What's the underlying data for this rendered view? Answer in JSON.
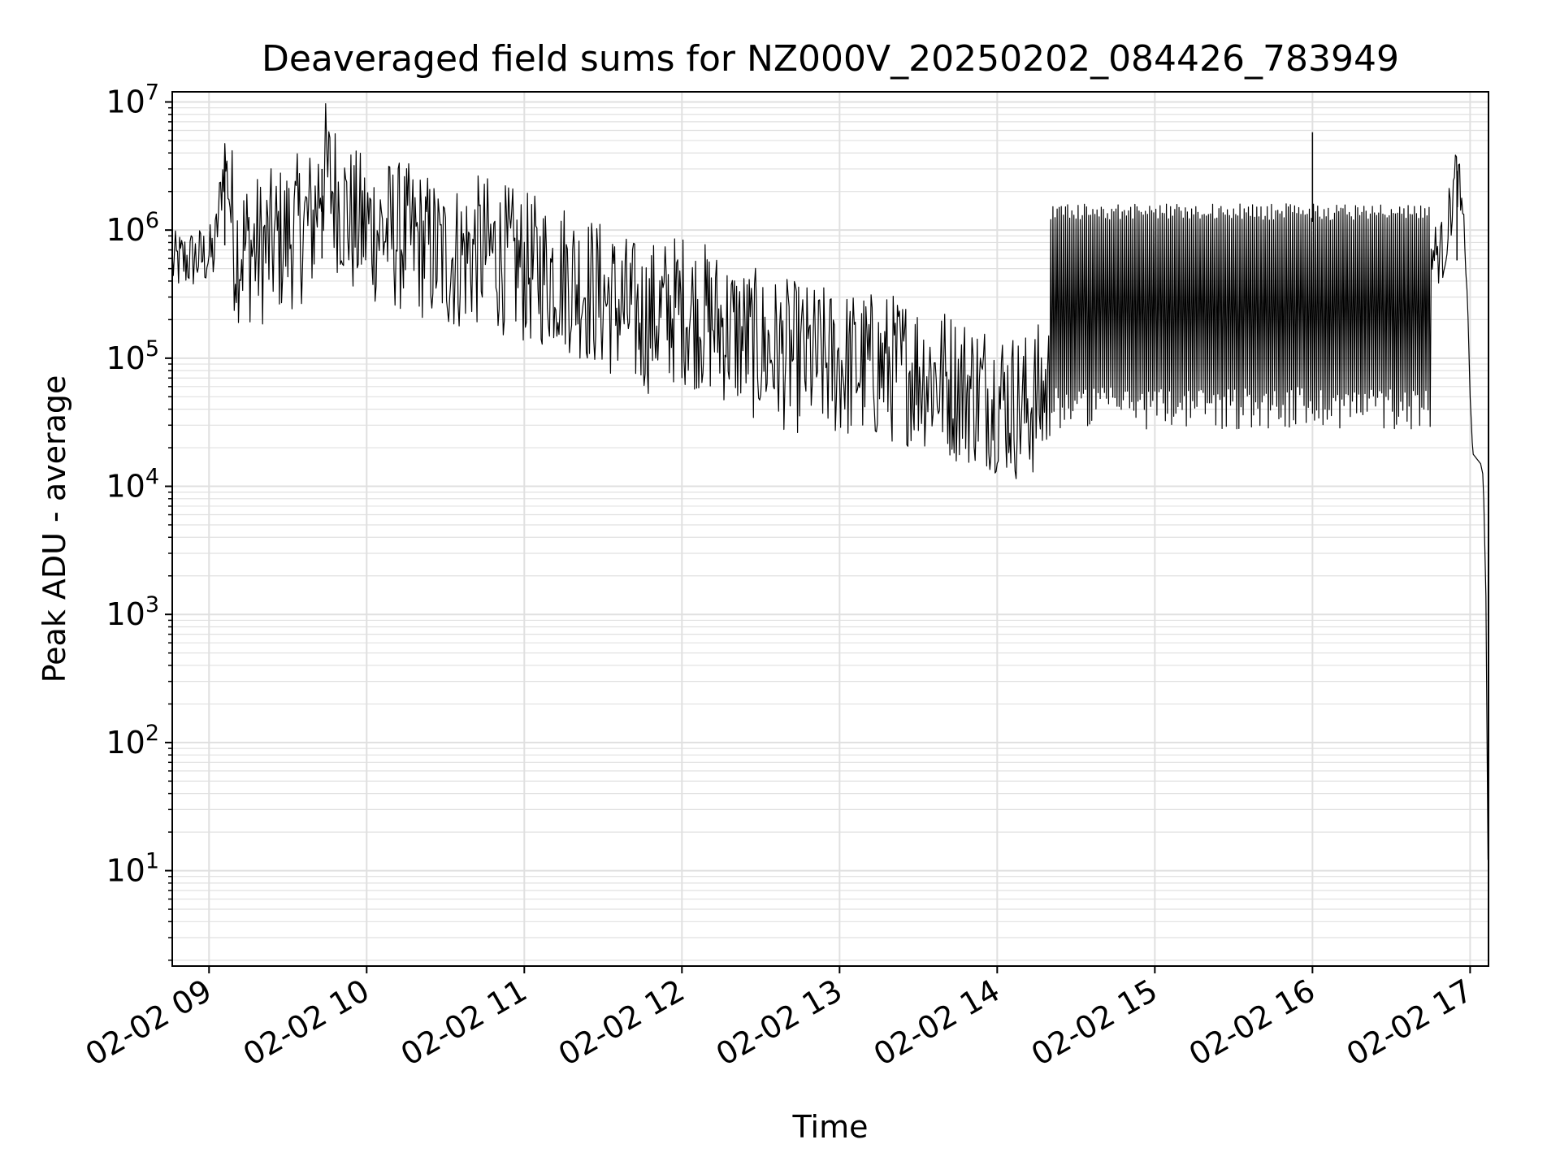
{
  "chart_data": {
    "type": "line",
    "title": "Deaveraged field sums for NZ000V_20250202_084426_783949",
    "xlabel": "Time",
    "ylabel": "Peak ADU - average",
    "yscale": "log",
    "ylim": [
      1.8,
      12000000
    ],
    "xlim": [
      "2025-02-02 08:46",
      "2025-02-02 17:07"
    ],
    "x_ticks": [
      {
        "label": "02-02 09",
        "t": "2025-02-02 09:00"
      },
      {
        "label": "02-02 10",
        "t": "2025-02-02 10:00"
      },
      {
        "label": "02-02 11",
        "t": "2025-02-02 11:00"
      },
      {
        "label": "02-02 12",
        "t": "2025-02-02 12:00"
      },
      {
        "label": "02-02 13",
        "t": "2025-02-02 13:00"
      },
      {
        "label": "02-02 14",
        "t": "2025-02-02 14:00"
      },
      {
        "label": "02-02 15",
        "t": "2025-02-02 15:00"
      },
      {
        "label": "02-02 16",
        "t": "2025-02-02 16:00"
      },
      {
        "label": "02-02 17",
        "t": "2025-02-02 17:00"
      }
    ],
    "y_ticks": [
      {
        "base": "10",
        "exp": "1",
        "value": 10
      },
      {
        "base": "10",
        "exp": "2",
        "value": 100
      },
      {
        "base": "10",
        "exp": "3",
        "value": 1000
      },
      {
        "base": "10",
        "exp": "4",
        "value": 10000
      },
      {
        "base": "10",
        "exp": "5",
        "value": 100000
      },
      {
        "base": "10",
        "exp": "6",
        "value": 1000000
      },
      {
        "base": "10",
        "exp": "7",
        "value": 10000000
      }
    ],
    "grid": true,
    "line_color": "#000000",
    "grid_color": "#e0e0e0",
    "series": [
      {
        "points": [
          [
            "2025-02-02 08:46",
            550000
          ],
          [
            "2025-02-02 08:55",
            600000
          ],
          [
            "2025-02-02 09:02",
            650000
          ],
          [
            "2025-02-02 09:06",
            3800000
          ],
          [
            "2025-02-02 09:10",
            750000
          ],
          [
            "2025-02-02 09:20",
            700000
          ],
          [
            "2025-02-02 09:30",
            900000
          ],
          [
            "2025-02-02 09:40",
            1200000
          ],
          [
            "2025-02-02 09:43",
            3000000
          ],
          [
            "2025-02-02 09:47",
            2100000
          ],
          [
            "2025-02-02 09:55",
            1100000
          ],
          [
            "2025-02-02 10:05",
            1000000
          ],
          [
            "2025-02-02 10:20",
            800000
          ],
          [
            "2025-02-02 10:30",
            600000
          ],
          [
            "2025-02-02 10:45",
            700000
          ],
          [
            "2025-02-02 11:00",
            500000
          ],
          [
            "2025-02-02 11:15",
            450000
          ],
          [
            "2025-02-02 11:30",
            300000
          ],
          [
            "2025-02-02 11:45",
            200000
          ],
          [
            "2025-02-02 12:00",
            250000
          ],
          [
            "2025-02-02 12:15",
            180000
          ],
          [
            "2025-02-02 12:30",
            120000
          ],
          [
            "2025-02-02 12:45",
            100000
          ],
          [
            "2025-02-02 13:00",
            90000
          ],
          [
            "2025-02-02 13:15",
            85000
          ],
          [
            "2025-02-02 13:30",
            80000
          ],
          [
            "2025-02-02 13:45",
            60000
          ],
          [
            "2025-02-02 14:00",
            50000
          ],
          [
            "2025-02-02 14:10",
            40000
          ],
          [
            "2025-02-02 14:30",
            80000
          ],
          [
            "2025-02-02 15:00",
            150000
          ],
          [
            "2025-02-02 15:30",
            200000
          ],
          [
            "2025-02-02 15:59",
            300000
          ],
          [
            "2025-02-02 16:00",
            5800000
          ],
          [
            "2025-02-02 16:02",
            400000
          ],
          [
            "2025-02-02 16:30",
            500000
          ],
          [
            "2025-02-02 16:50",
            700000
          ],
          [
            "2025-02-02 16:55",
            2900000
          ],
          [
            "2025-02-02 16:57",
            1200000
          ],
          [
            "2025-02-02 16:59",
            300000
          ],
          [
            "2025-02-02 17:00",
            50000
          ],
          [
            "2025-02-02 17:01",
            18000
          ],
          [
            "2025-02-02 17:04",
            15000
          ],
          [
            "2025-02-02 17:05",
            12000
          ],
          [
            "2025-02-02 17:06",
            1400
          ],
          [
            "2025-02-02 17:07",
            3.7
          ]
        ]
      }
    ]
  }
}
